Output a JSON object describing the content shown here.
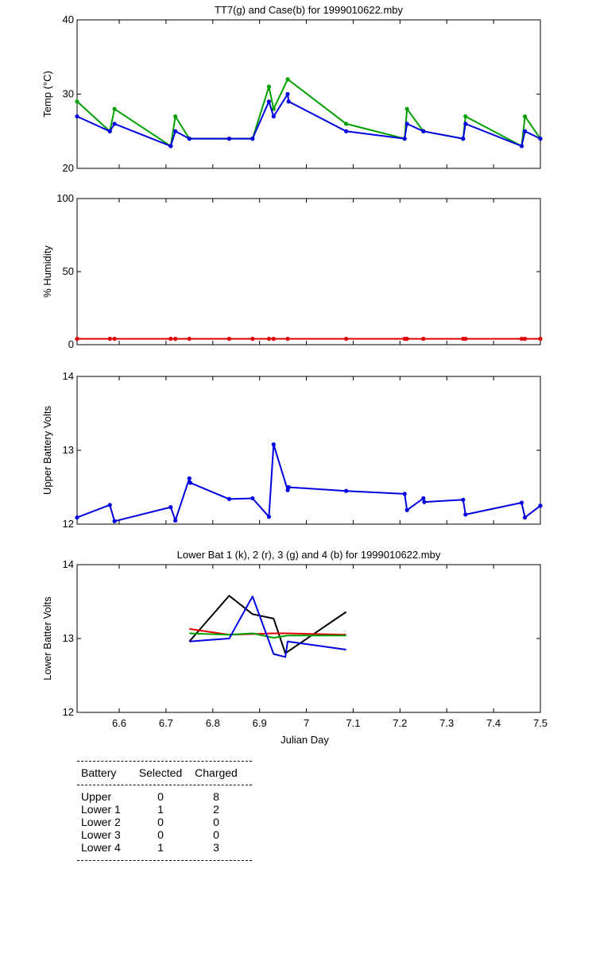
{
  "chart_data": [
    {
      "type": "line",
      "title": "TT7(g) and Case(b) for 1999010622.mby",
      "xlabel": "",
      "ylabel": "Temp  (°C)",
      "xlim": [
        6.51,
        7.5
      ],
      "ylim": [
        20,
        40
      ],
      "yticks": [
        20,
        30,
        40
      ],
      "grid": false,
      "series": [
        {
          "color": "#00a000",
          "x": [
            6.51,
            6.58,
            6.59,
            6.71,
            6.72,
            6.75,
            6.835,
            6.885,
            6.92,
            6.93,
            6.96,
            7.085,
            7.21,
            7.215,
            7.25,
            7.335,
            7.34,
            7.46,
            7.467,
            7.5
          ],
          "y": [
            29,
            25,
            28,
            23,
            27,
            24,
            24,
            24,
            31,
            28,
            32,
            26,
            24,
            28,
            25,
            24,
            27,
            23,
            27,
            24
          ]
        },
        {
          "color": "#0000e0",
          "x": [
            6.51,
            6.58,
            6.59,
            6.71,
            6.72,
            6.75,
            6.835,
            6.885,
            6.92,
            6.93,
            6.96,
            6.962,
            7.085,
            7.21,
            7.215,
            7.25,
            7.335,
            7.34,
            7.46,
            7.467,
            7.5
          ],
          "y": [
            27,
            25,
            26,
            23,
            25,
            24,
            24,
            24,
            29,
            27,
            30,
            29,
            25,
            24,
            26,
            25,
            24,
            26,
            23,
            25,
            24
          ]
        }
      ]
    },
    {
      "type": "line",
      "title": "",
      "xlabel": "",
      "ylabel": "% Humidity",
      "xlim": [
        6.51,
        7.5
      ],
      "ylim": [
        0,
        100
      ],
      "yticks": [
        0,
        50,
        100
      ],
      "grid": false,
      "series": [
        {
          "color": "#e00000",
          "x": [
            6.51,
            6.58,
            6.59,
            6.71,
            6.72,
            6.75,
            6.835,
            6.885,
            6.92,
            6.93,
            6.96,
            7.085,
            7.21,
            7.215,
            7.25,
            7.335,
            7.34,
            7.46,
            7.467,
            7.5
          ],
          "y": [
            4,
            4,
            4,
            4,
            4,
            4,
            4,
            4,
            4,
            4,
            4,
            4,
            4,
            4,
            4,
            4,
            4,
            4,
            4,
            4
          ]
        }
      ]
    },
    {
      "type": "line",
      "title": "",
      "xlabel": "",
      "ylabel": "Upper Battery Volts",
      "xlim": [
        6.51,
        7.5
      ],
      "ylim": [
        12,
        14
      ],
      "yticks": [
        12,
        13,
        14
      ],
      "grid": false,
      "series": [
        {
          "color": "#0000e0",
          "x": [
            6.51,
            6.58,
            6.59,
            6.71,
            6.72,
            6.75,
            6.752,
            6.835,
            6.885,
            6.92,
            6.93,
            6.96,
            6.962,
            7.085,
            7.21,
            7.215,
            7.25,
            7.252,
            7.335,
            7.34,
            7.46,
            7.467,
            7.5
          ],
          "y": [
            12.09,
            12.26,
            12.04,
            12.23,
            12.05,
            12.62,
            12.56,
            12.34,
            12.35,
            12.1,
            13.08,
            12.46,
            12.5,
            12.45,
            12.41,
            12.19,
            12.35,
            12.3,
            12.33,
            12.13,
            12.29,
            12.09,
            12.25
          ]
        }
      ]
    },
    {
      "type": "line",
      "title": "Lower Bat 1 (k), 2 (r), 3 (g) and 4 (b) for 1999010622.mby",
      "xlabel": "Julian Day",
      "ylabel": "Lower Batter Volts",
      "xlim": [
        6.51,
        7.5
      ],
      "ylim": [
        12,
        14
      ],
      "yticks": [
        12,
        13,
        14
      ],
      "xticks": [
        6.6,
        6.7,
        6.8,
        6.9,
        7,
        7.1,
        7.2,
        7.3,
        7.4,
        7.5
      ],
      "grid": false,
      "series": [
        {
          "color": "#000000",
          "x": [
            6.75,
            6.835,
            6.885,
            6.93,
            6.955,
            7.085
          ],
          "y": [
            12.96,
            13.58,
            13.33,
            13.27,
            12.8,
            13.36
          ]
        },
        {
          "color": "#e00000",
          "x": [
            6.75,
            6.835,
            6.885,
            6.93,
            6.96,
            7.085
          ],
          "y": [
            13.13,
            13.05,
            13.06,
            13.07,
            13.07,
            13.05
          ]
        },
        {
          "color": "#00a000",
          "x": [
            6.75,
            6.835,
            6.885,
            6.93,
            6.96,
            7.085
          ],
          "y": [
            13.07,
            13.05,
            13.07,
            13.01,
            13.04,
            13.04
          ]
        },
        {
          "color": "#0000e0",
          "x": [
            6.75,
            6.835,
            6.885,
            6.93,
            6.955,
            6.96,
            7.085
          ],
          "y": [
            12.96,
            13.0,
            13.57,
            12.79,
            12.75,
            12.96,
            12.85
          ]
        }
      ]
    }
  ],
  "table": {
    "headers": [
      "Battery",
      "Selected",
      "Charged"
    ],
    "rows": [
      [
        "Upper",
        "0",
        "8"
      ],
      [
        "Lower 1",
        "1",
        "2"
      ],
      [
        "Lower 2",
        "0",
        "0"
      ],
      [
        "Lower 3",
        "0",
        "0"
      ],
      [
        "Lower 4",
        "1",
        "3"
      ]
    ]
  }
}
